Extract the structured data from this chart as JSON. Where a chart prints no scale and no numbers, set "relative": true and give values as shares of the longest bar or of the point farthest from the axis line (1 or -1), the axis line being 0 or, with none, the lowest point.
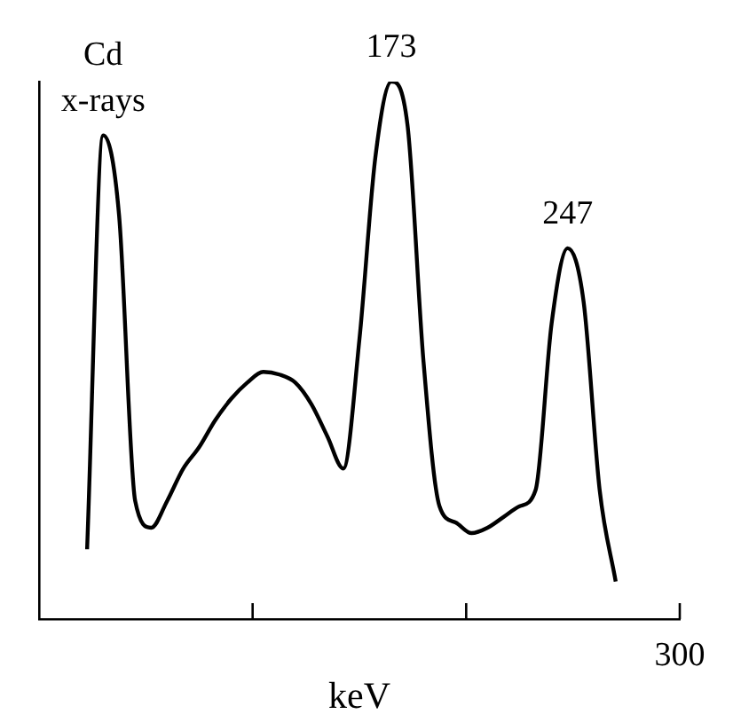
{
  "chart_data": {
    "type": "line",
    "xlabel": "keV",
    "relative": true,
    "color": "#000000",
    "marker": "none",
    "grid": false,
    "legend": false,
    "categories": [
      null,
      null,
      null,
      null,
      null,
      null,
      null,
      null,
      null,
      null,
      null,
      null,
      null,
      null,
      null,
      null,
      null,
      null,
      null,
      null,
      null,
      null,
      null,
      null,
      null,
      null,
      null,
      null,
      null,
      null,
      null,
      null,
      null,
      null,
      null,
      null,
      null,
      null,
      null,
      null,
      null
    ],
    "values": [
      null,
      null,
      null,
      0.13,
      0.9,
      0.75,
      0.22,
      0.17,
      0.22,
      0.28,
      0.32,
      0.37,
      0.41,
      0.44,
      0.46,
      0.455,
      0.44,
      0.4,
      0.34,
      0.28,
      0.52,
      0.86,
      1,
      0.92,
      0.48,
      0.21,
      0.18,
      0.16,
      0.17,
      0.19,
      0.21,
      0.24,
      0.55,
      0.69,
      0.59,
      0.24,
      0.07,
      null,
      null,
      null,
      null
    ],
    "annotations": [
      "Cd x-rays",
      "173",
      "247",
      "300"
    ]
  }
}
